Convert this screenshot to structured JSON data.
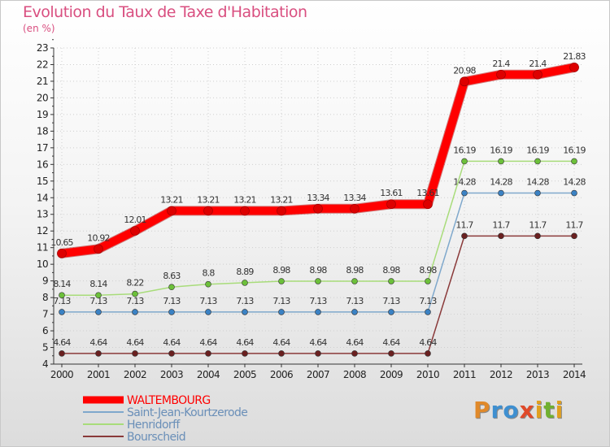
{
  "title": "Evolution du Taux de Taxe d'Habitation",
  "subtitle": "(en %)",
  "logo": {
    "text": "Proxiti",
    "letters": [
      "P",
      "r",
      "o",
      "x",
      "i",
      "t",
      "i"
    ],
    "colors": [
      "#e0892a",
      "#3e8fd0",
      "#3e8fd0",
      "#e04a2a",
      "#e0a020",
      "#70b030",
      "#e0a020"
    ]
  },
  "chart_data": {
    "type": "line",
    "x": [
      2000,
      2001,
      2002,
      2003,
      2004,
      2005,
      2006,
      2007,
      2008,
      2009,
      2010,
      2011,
      2012,
      2013,
      2014
    ],
    "ylim": [
      4,
      23
    ],
    "yticks": [
      4,
      5,
      6,
      7,
      8,
      9,
      10,
      11,
      12,
      13,
      14,
      15,
      16,
      17,
      18,
      19,
      20,
      21,
      22,
      23
    ],
    "grid": true,
    "legend_position": "bottom-left",
    "series": [
      {
        "name": "WALTEMBOURG",
        "color": "#ff0000",
        "marker": "#dd0000",
        "width": 10,
        "values": [
          10.65,
          10.92,
          12.01,
          13.21,
          13.21,
          13.21,
          13.21,
          13.34,
          13.34,
          13.61,
          13.61,
          20.98,
          21.4,
          21.4,
          21.83
        ],
        "labels": [
          "10.65",
          "10.92",
          "12.01",
          "13.21",
          "13.21",
          "13.21",
          "13.21",
          "13.34",
          "13.34",
          "13.61",
          "13.61",
          "20.98",
          "21.4",
          "21.4",
          "21.83"
        ]
      },
      {
        "name": "Saint-Jean-Kourtzerode",
        "color": "#7fa8cc",
        "marker": "#3b82c4",
        "width": 1.5,
        "values": [
          7.13,
          7.13,
          7.13,
          7.13,
          7.13,
          7.13,
          7.13,
          7.13,
          7.13,
          7.13,
          7.13,
          14.28,
          14.28,
          14.28,
          14.28
        ],
        "labels": [
          "7.13",
          "7.13",
          "7.13",
          "7.13",
          "7.13",
          "7.13",
          "7.13",
          "7.13",
          "7.13",
          "7.13",
          "7.13",
          "14.28",
          "14.28",
          "14.28",
          "14.28"
        ]
      },
      {
        "name": "Henridorff",
        "color": "#a8dc7a",
        "marker": "#6cc03a",
        "width": 1.5,
        "values": [
          8.14,
          8.14,
          8.22,
          8.63,
          8.8,
          8.89,
          8.98,
          8.98,
          8.98,
          8.98,
          8.98,
          16.19,
          16.19,
          16.19,
          16.19
        ],
        "labels": [
          "8.14",
          "8.14",
          "8.22",
          "8.63",
          "8.8",
          "8.89",
          "8.98",
          "8.98",
          "8.98",
          "8.98",
          "8.98",
          "16.19",
          "16.19",
          "16.19",
          "16.19"
        ]
      },
      {
        "name": "Bourscheid",
        "color": "#8a3a3a",
        "marker": "#6a2020",
        "width": 1.5,
        "values": [
          4.64,
          4.64,
          4.64,
          4.64,
          4.64,
          4.64,
          4.64,
          4.64,
          4.64,
          4.64,
          4.64,
          11.7,
          11.7,
          11.7,
          11.7
        ],
        "labels": [
          "4.64",
          "4.64",
          "4.64",
          "4.64",
          "4.64",
          "4.64",
          "4.64",
          "4.64",
          "4.64",
          "4.64",
          "4.64",
          "11.7",
          "11.7",
          "11.7",
          "11.7"
        ]
      }
    ]
  }
}
